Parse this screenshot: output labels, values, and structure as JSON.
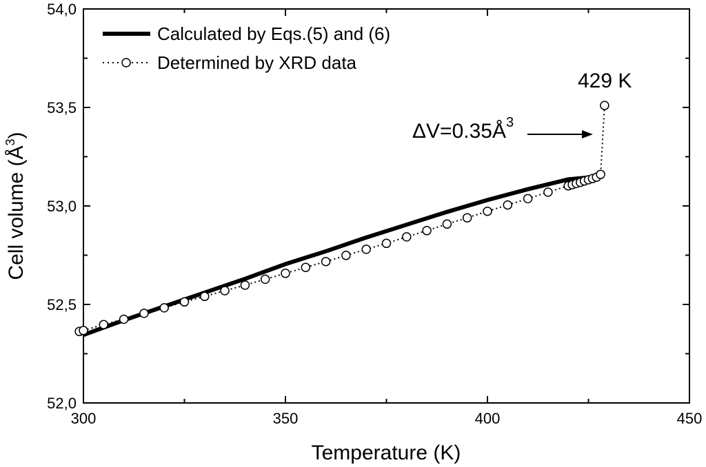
{
  "chart_data": {
    "type": "line",
    "title": "",
    "xlabel": "Temperature (K)",
    "ylabel_text": "Cell volume (Å",
    "ylabel_sup": "3",
    "ylabel_close": ")",
    "xlim": [
      300,
      450
    ],
    "ylim": [
      52.0,
      54.0
    ],
    "x_ticks": [
      300,
      350,
      400,
      450
    ],
    "x_tick_labels": [
      "300",
      "350",
      "400",
      "450"
    ],
    "y_ticks": [
      52.0,
      52.5,
      53.0,
      53.5,
      54.0
    ],
    "y_tick_labels": [
      "52,0",
      "52,5",
      "53,0",
      "53,5",
      "54,0"
    ],
    "legend_position": "top-left",
    "series": [
      {
        "name": "Calculated by Eqs.(5) and (6)",
        "style": "thick-line",
        "x": [
          300,
          310,
          320,
          330,
          340,
          350,
          360,
          370,
          380,
          390,
          400,
          410,
          420,
          428
        ],
        "y": [
          52.345,
          52.42,
          52.49,
          52.56,
          52.63,
          52.705,
          52.77,
          52.84,
          52.905,
          52.97,
          53.03,
          53.085,
          53.135,
          53.15
        ]
      },
      {
        "name": "Determined by XRD data",
        "style": "dotted-line-open-circles",
        "x": [
          299,
          300,
          305,
          310,
          315,
          320,
          325,
          330,
          335,
          340,
          345,
          350,
          355,
          360,
          365,
          370,
          375,
          380,
          385,
          390,
          395,
          400,
          405,
          410,
          415,
          420,
          421,
          422,
          423,
          424,
          425,
          426,
          427,
          428,
          429
        ],
        "y": [
          52.363,
          52.368,
          52.398,
          52.425,
          52.455,
          52.483,
          52.513,
          52.541,
          52.57,
          52.598,
          52.628,
          52.658,
          52.688,
          52.718,
          52.749,
          52.78,
          52.81,
          52.843,
          52.875,
          52.908,
          52.94,
          52.973,
          53.005,
          53.037,
          53.07,
          53.102,
          53.108,
          53.114,
          53.12,
          53.127,
          53.133,
          53.139,
          53.146,
          53.16,
          53.51
        ]
      }
    ],
    "annotations": {
      "point_label": "429 K",
      "delta_prefix": "ΔV=0.35Å",
      "delta_sup": "3"
    }
  }
}
